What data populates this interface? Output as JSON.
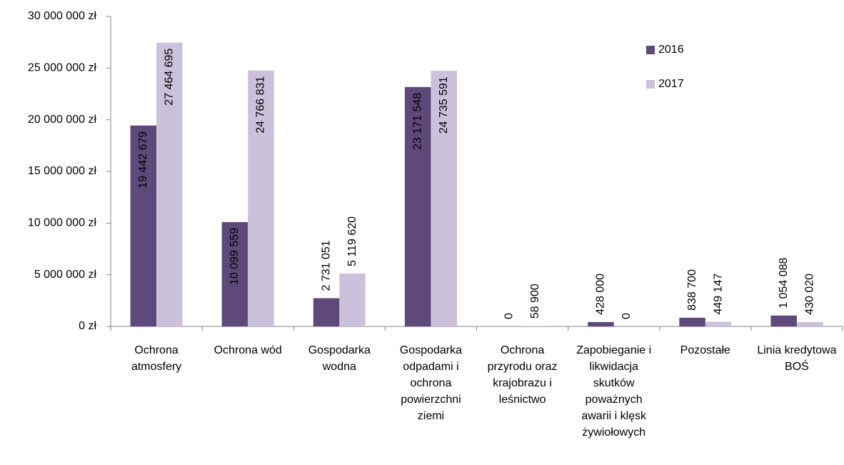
{
  "chart_data": {
    "type": "bar",
    "categories": [
      "Ochrona atmosfery",
      "Ochrona wód",
      "Gospodarka wodna",
      "Gospodarka odpadami i ochrona powierzchni ziemi",
      "Ochrona przyrodu oraz krajobrazu i leśnictwo",
      "Zapobieganie i likwidacja skutków poważnych awarii i klęsk żywiołowych",
      "Pozostałe",
      "Linia kredytowa BOŚ"
    ],
    "series": [
      {
        "name": "2016",
        "color": "#5f497a",
        "values": [
          19442679,
          10099559,
          2731051,
          23171548,
          0,
          428000,
          838700,
          1054088
        ],
        "value_labels": [
          "19 442 679",
          "10 099 559",
          "2 731 051",
          "23 171 548",
          "0",
          "428 000",
          "838 700",
          "1 054 088"
        ]
      },
      {
        "name": "2017",
        "color": "#ccc1da",
        "values": [
          27464695,
          24766831,
          5119620,
          24735591,
          58900,
          0,
          449147,
          430020
        ],
        "value_labels": [
          "27 464 695",
          "24 766 831",
          "5 119 620",
          "24 735 591",
          "58 900",
          "0",
          "449 147",
          "430 020"
        ]
      }
    ],
    "ylim": [
      0,
      30000000
    ],
    "yticks": [
      {
        "value": 0,
        "label": "0 zł"
      },
      {
        "value": 5000000,
        "label": "5 000 000 zł"
      },
      {
        "value": 10000000,
        "label": "10 000 000 zł"
      },
      {
        "value": 15000000,
        "label": "15 000 000 zł"
      },
      {
        "value": 20000000,
        "label": "20 000 000 zł"
      },
      {
        "value": 25000000,
        "label": "25 000 000 zł"
      },
      {
        "value": 30000000,
        "label": "30 000 000 zł"
      }
    ],
    "grid": false,
    "legend": "upper right"
  }
}
